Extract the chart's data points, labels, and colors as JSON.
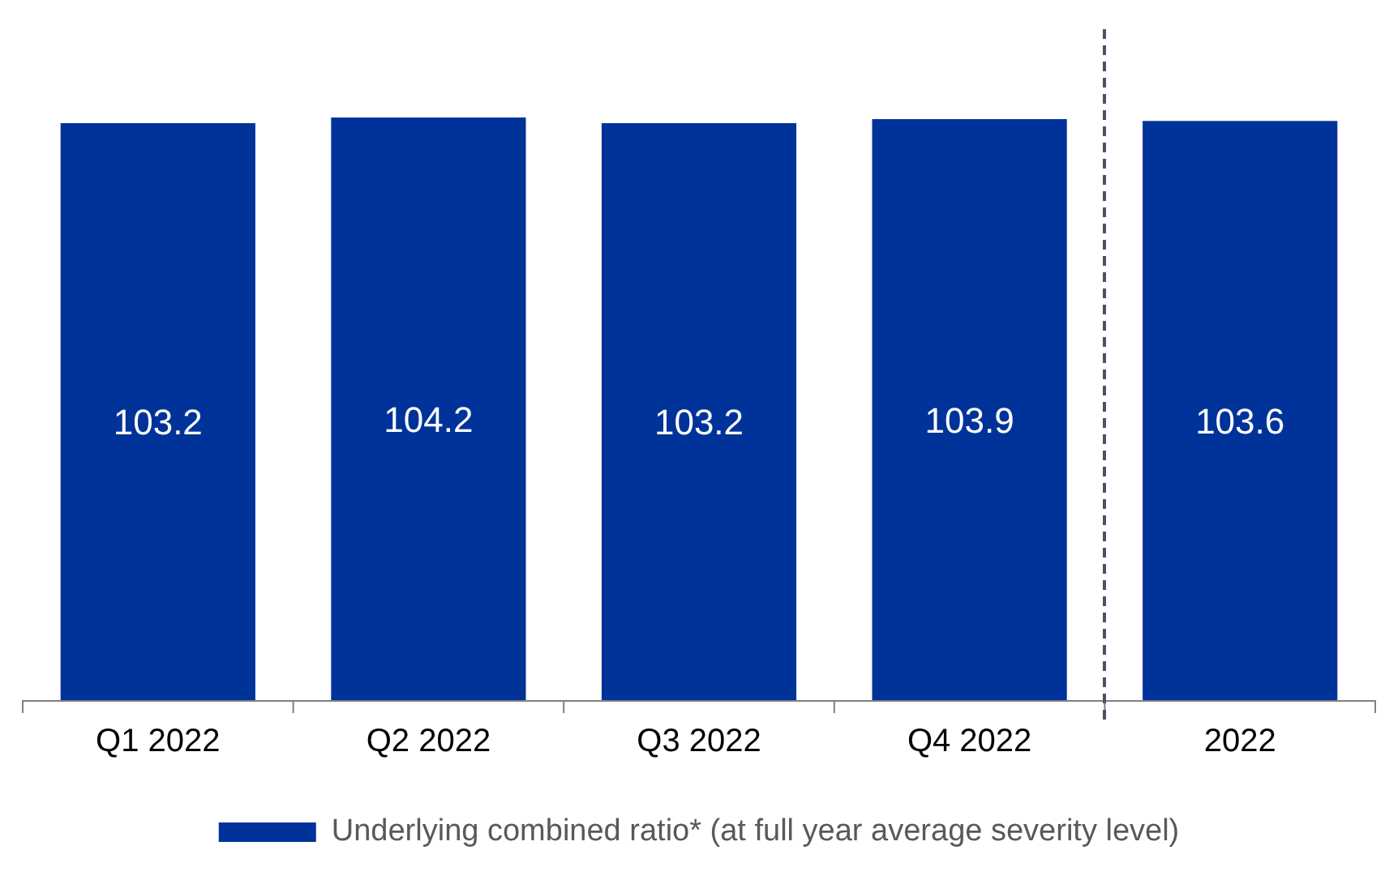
{
  "chart_data": {
    "type": "bar",
    "categories": [
      "Q1 2022",
      "Q2 2022",
      "Q3 2022",
      "Q4 2022",
      "2022"
    ],
    "series": [
      {
        "name": "Underlying combined ratio* (at full year average severity level)",
        "color": "#003399",
        "values": [
          103.2,
          104.2,
          103.2,
          103.9,
          103.6
        ]
      }
    ],
    "tick_labels": "x",
    "data_labels": true,
    "legend": "bottom",
    "grid": false
  }
}
